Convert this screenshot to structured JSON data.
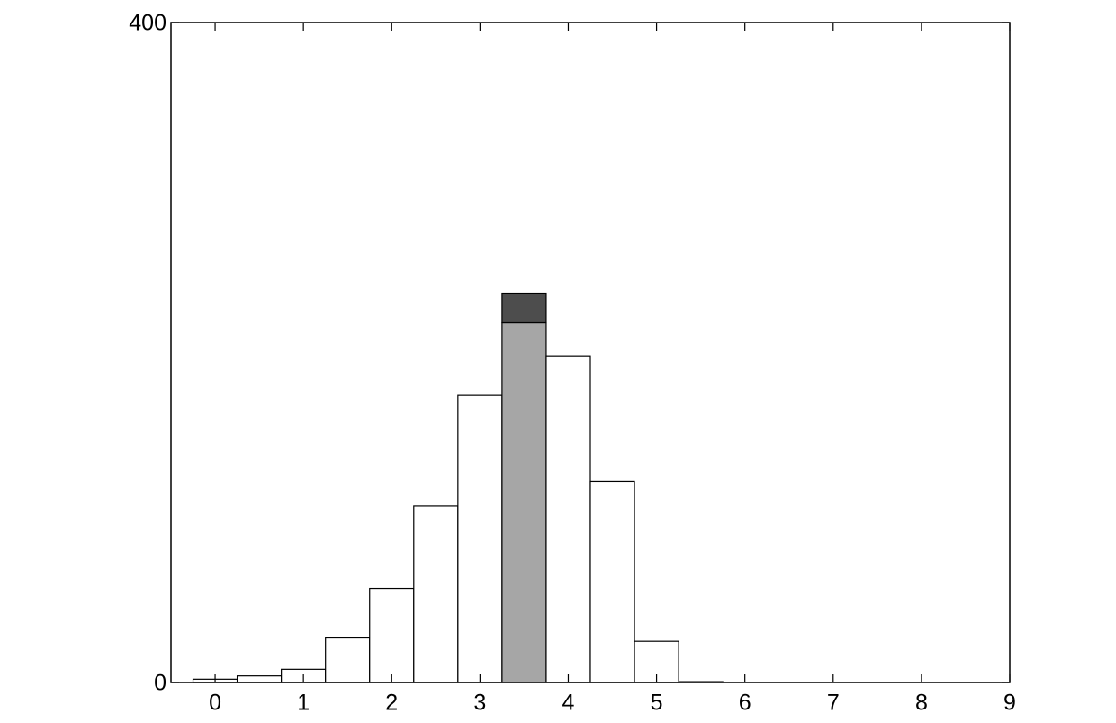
{
  "chart_data": {
    "type": "histogram",
    "bins": [
      -0.25,
      0.25,
      0.75,
      1.25,
      1.75,
      2.25,
      2.75,
      3.25,
      3.75,
      4.25,
      4.75,
      5.25,
      5.75
    ],
    "counts": [
      2,
      4,
      8,
      27,
      57,
      107,
      174,
      218,
      198,
      122,
      25,
      0.5
    ],
    "colors": [
      "#ffffff",
      "#ffffff",
      "#ffffff",
      "#ffffff",
      "#ffffff",
      "#ffffff",
      "#ffffff",
      "#a6a6a6",
      "#ffffff",
      "#ffffff",
      "#ffffff",
      "#ffffff"
    ],
    "overlay": [
      null,
      null,
      null,
      null,
      null,
      null,
      null,
      18,
      null,
      null,
      null,
      null
    ],
    "overlay_color": "#4d4d4d",
    "xlim": [
      -0.5,
      9
    ],
    "xticks": [
      0,
      1,
      2,
      3,
      4,
      5,
      6,
      7,
      8,
      9
    ],
    "ylim": [
      0,
      400
    ],
    "yticks": [
      0,
      400
    ]
  }
}
